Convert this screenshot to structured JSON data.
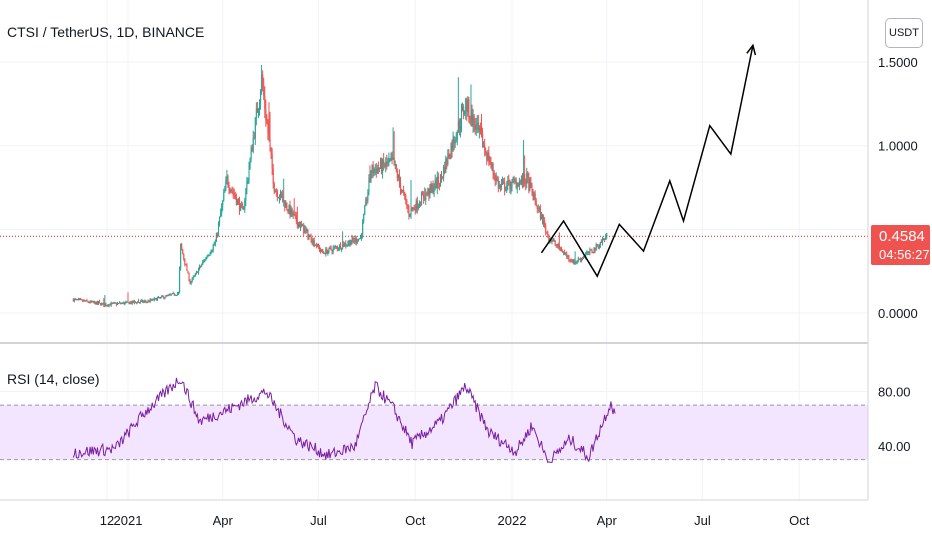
{
  "header": {
    "symbol_title": "CTSI / TetherUS, 1D, BINANCE",
    "currency_button": "USDT"
  },
  "price_tag": {
    "price": "0.4584",
    "countdown": "04:56:27"
  },
  "rsi_panel": {
    "label": "RSI (14, close)"
  },
  "colors": {
    "up": "#26a69a",
    "down": "#ef5350",
    "rsi_line": "#7b1fa2",
    "rsi_band": "#f3e5ff",
    "forecast_line": "#000000",
    "price_line": "#e53935"
  },
  "chart_data": [
    {
      "type": "candlestick",
      "title": "CTSI / TetherUS, 1D, BINANCE",
      "y_axis_ticks": [
        "1.5000",
        "1.0000",
        "0.0000"
      ],
      "x_axis_ticks": [
        "12",
        "2021",
        "Apr",
        "Jul",
        "Oct",
        "2022",
        "Apr",
        "Jul",
        "Oct"
      ],
      "current_price": 0.4584,
      "approx_close_path": [
        {
          "date": "2020-11-10",
          "close": 0.08
        },
        {
          "date": "2020-12-10",
          "close": 0.05
        },
        {
          "date": "2021-01-20",
          "close": 0.07
        },
        {
          "date": "2021-02-18",
          "close": 0.12
        },
        {
          "date": "2021-02-20",
          "close": 0.4
        },
        {
          "date": "2021-03-01",
          "close": 0.18
        },
        {
          "date": "2021-03-25",
          "close": 0.42
        },
        {
          "date": "2021-04-05",
          "close": 0.8
        },
        {
          "date": "2021-04-20",
          "close": 0.6
        },
        {
          "date": "2021-05-08",
          "close": 1.4
        },
        {
          "date": "2021-05-20",
          "close": 0.75
        },
        {
          "date": "2021-06-10",
          "close": 0.55
        },
        {
          "date": "2021-07-05",
          "close": 0.36
        },
        {
          "date": "2021-08-10",
          "close": 0.45
        },
        {
          "date": "2021-08-20",
          "close": 0.85
        },
        {
          "date": "2021-09-10",
          "close": 0.9
        },
        {
          "date": "2021-09-25",
          "close": 0.6
        },
        {
          "date": "2021-10-25",
          "close": 0.8
        },
        {
          "date": "2021-11-18",
          "close": 1.25
        },
        {
          "date": "2021-12-05",
          "close": 1.0
        },
        {
          "date": "2021-12-20",
          "close": 0.75
        },
        {
          "date": "2022-01-15",
          "close": 0.8
        },
        {
          "date": "2022-02-05",
          "close": 0.45
        },
        {
          "date": "2022-03-01",
          "close": 0.3
        },
        {
          "date": "2022-03-20",
          "close": 0.38
        },
        {
          "date": "2022-04-01",
          "close": 0.4584
        }
      ],
      "forecast_path": [
        {
          "date": "2022-01-29",
          "price": 0.36
        },
        {
          "date": "2022-02-19",
          "price": 0.55
        },
        {
          "date": "2022-03-23",
          "price": 0.22
        },
        {
          "date": "2022-04-13",
          "price": 0.53
        },
        {
          "date": "2022-05-06",
          "price": 0.37
        },
        {
          "date": "2022-05-31",
          "price": 0.79
        },
        {
          "date": "2022-06-13",
          "price": 0.55
        },
        {
          "date": "2022-07-08",
          "price": 1.12
        },
        {
          "date": "2022-07-28",
          "price": 0.95
        },
        {
          "date": "2022-08-18",
          "price": 1.6
        }
      ]
    },
    {
      "type": "line",
      "title": "RSI (14, close)",
      "y_axis_ticks": [
        "80.00",
        "40.00"
      ],
      "band": [
        30,
        70
      ],
      "approx_path": [
        {
          "date": "2020-11-10",
          "value": 35
        },
        {
          "date": "2020-12-20",
          "value": 38
        },
        {
          "date": "2021-01-15",
          "value": 63
        },
        {
          "date": "2021-02-20",
          "value": 90
        },
        {
          "date": "2021-03-10",
          "value": 58
        },
        {
          "date": "2021-04-10",
          "value": 68
        },
        {
          "date": "2021-05-12",
          "value": 80
        },
        {
          "date": "2021-06-10",
          "value": 45
        },
        {
          "date": "2021-07-10",
          "value": 33
        },
        {
          "date": "2021-08-05",
          "value": 40
        },
        {
          "date": "2021-08-24",
          "value": 84
        },
        {
          "date": "2021-09-10",
          "value": 68
        },
        {
          "date": "2021-09-28",
          "value": 42
        },
        {
          "date": "2021-10-25",
          "value": 58
        },
        {
          "date": "2021-11-18",
          "value": 84
        },
        {
          "date": "2021-12-10",
          "value": 50
        },
        {
          "date": "2022-01-05",
          "value": 36
        },
        {
          "date": "2022-01-20",
          "value": 55
        },
        {
          "date": "2022-02-05",
          "value": 28
        },
        {
          "date": "2022-02-25",
          "value": 45
        },
        {
          "date": "2022-03-15",
          "value": 32
        },
        {
          "date": "2022-04-05",
          "value": 72
        },
        {
          "date": "2022-04-09",
          "value": 63
        }
      ]
    }
  ]
}
